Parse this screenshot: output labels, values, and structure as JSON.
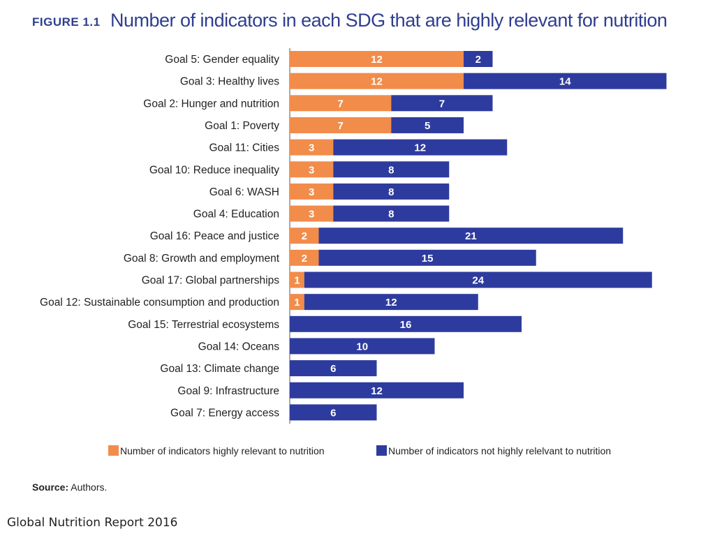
{
  "figure_label": "FIGURE 1.1",
  "chart_data": {
    "type": "bar",
    "orientation": "horizontal",
    "stacked": true,
    "title": "Number of indicators in each SDG that are highly relevant for nutrition",
    "categories": [
      "Goal 5: Gender equality",
      "Goal 3: Healthy lives",
      "Goal 2: Hunger and nutrition",
      "Goal 1: Poverty",
      "Goal 11: Cities",
      "Goal 10: Reduce inequality",
      "Goal 6: WASH",
      "Goal 4: Education",
      "Goal 16: Peace and justice",
      "Goal 8:  Growth and employment",
      "Goal 17: Global partnerships",
      "Goal 12: Sustainable consumption and production",
      "Goal 15: Terrestrial ecosystems",
      "Goal 14: Oceans",
      "Goal 13: Climate change",
      "Goal 9: Infrastructure",
      "Goal 7: Energy access"
    ],
    "series": [
      {
        "name": "Number of indicators highly relevant to nutrition",
        "color": "#f28c4a",
        "values": [
          12,
          12,
          7,
          7,
          3,
          3,
          3,
          3,
          2,
          2,
          1,
          1,
          0,
          0,
          0,
          0,
          0
        ]
      },
      {
        "name": "Number of indicators not highly relelvant to nutrition",
        "color": "#2e3b9e",
        "values": [
          2,
          14,
          7,
          5,
          12,
          8,
          8,
          8,
          21,
          15,
          24,
          12,
          16,
          10,
          6,
          12,
          6
        ]
      }
    ],
    "grid": false,
    "legend_position": "bottom"
  },
  "source": {
    "label": "Source:",
    "text": " Authors."
  },
  "footer": "Global Nutrition Report 2016"
}
